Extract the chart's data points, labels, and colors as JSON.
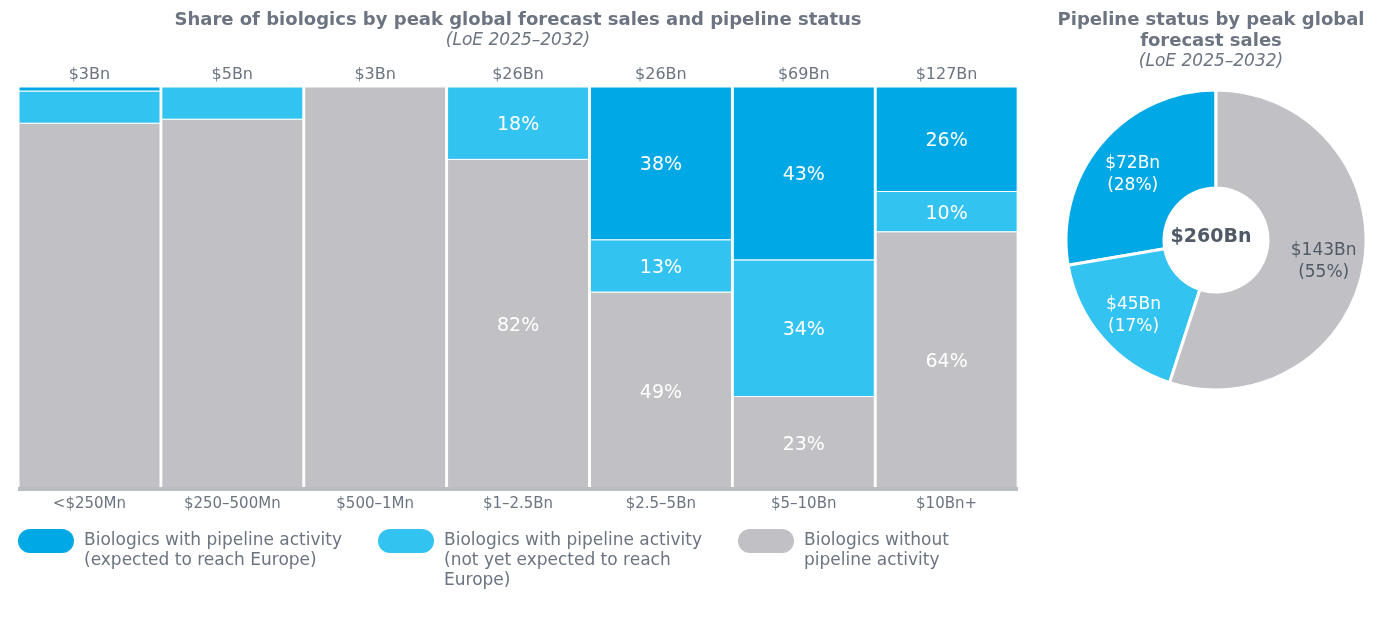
{
  "chart_data": [
    {
      "type": "bar",
      "title": "Share of biologics by peak global forecast sales and pipeline status",
      "subtitle": "(LoE 2025–2032)",
      "stacked": true,
      "legend": "bottom",
      "categories": [
        "<$250Mn",
        "$250–500Mn",
        "$500–1Mn",
        "$1–2.5Bn",
        "$2.5–5Bn",
        "$5–10Bn",
        "$10Bn+"
      ],
      "annotations": [
        "$3Bn",
        "$5Bn",
        "$3Bn",
        "$26Bn",
        "$26Bn",
        "$69Bn",
        "$127Bn"
      ],
      "series": [
        {
          "name": "Biologics without pipeline activity",
          "color": "#c1c0c5",
          "values": [
            91,
            92,
            100,
            82,
            49,
            23,
            64
          ],
          "value_labels": [
            null,
            null,
            null,
            "82%",
            "49%",
            "23%",
            "64%"
          ]
        },
        {
          "name": "Biologics with pipeline activity (not yet expected to reach Europe)",
          "color": "#33c3f1",
          "values": [
            8,
            8,
            0,
            18,
            13,
            34,
            10
          ],
          "value_labels": [
            null,
            null,
            null,
            "18%",
            "13%",
            "34%",
            "10%"
          ]
        },
        {
          "name": "Biologics with pipeline activity (expected to reach Europe)",
          "color": "#00a9e5",
          "values": [
            1,
            0,
            0,
            0,
            38,
            43,
            26
          ],
          "value_labels": [
            null,
            null,
            null,
            null,
            "38%",
            "43%",
            "26%"
          ]
        }
      ]
    },
    {
      "type": "donut",
      "title": "Pipeline status by peak global forecast sales",
      "subtitle": "(LoE 2025–2032)",
      "categories": [
        null,
        null,
        null
      ],
      "values": [
        72,
        45,
        143
      ],
      "colors": [
        "#00a9e5",
        "#33c3f1",
        "#c1c0c5"
      ],
      "value_labels": [
        "$72Bn (28%)",
        "$45Bn (17%)",
        "$143Bn (55%)"
      ],
      "annotations": [
        "$260Bn"
      ]
    }
  ]
}
